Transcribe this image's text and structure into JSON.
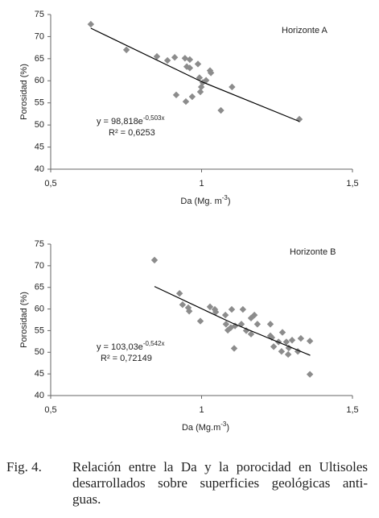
{
  "chart_data": [
    {
      "type": "scatter",
      "title": "Horizonte A",
      "x": [
        0.633,
        0.751,
        0.852,
        0.887,
        0.911,
        0.945,
        0.961,
        0.951,
        0.961,
        0.988,
        1.028,
        1.031,
        0.993,
        1.015,
        1.004,
        0.999,
        0.916,
        0.969,
        0.996,
        0.948,
        1.101,
        1.064,
        1.324
      ],
      "y": [
        72.8,
        67.0,
        65.5,
        64.6,
        65.3,
        65.1,
        64.8,
        63.2,
        62.9,
        63.8,
        62.3,
        61.8,
        60.7,
        60.1,
        59.6,
        58.6,
        56.8,
        56.4,
        57.5,
        55.3,
        58.6,
        53.3,
        51.3
      ],
      "color": "#8c8c8c",
      "trendline": {
        "x": [
          0.633,
          1.0,
          1.324
        ],
        "values": [
          71.9,
          59.8,
          50.8
        ],
        "color": "#000000"
      },
      "equation": {
        "text": "y = 98,818e",
        "sup": "-0,503x"
      },
      "r2": "R² = 0,6253",
      "xlim": [
        0.5,
        1.5
      ],
      "xticks": [
        {
          "value": 0.5,
          "label": "0,5"
        },
        1,
        {
          "value": 1.5,
          "label": "1,5"
        }
      ],
      "ylim": [
        40,
        75
      ],
      "yticks": [
        40,
        45,
        50,
        55,
        60,
        65,
        70,
        75
      ],
      "xlabel": {
        "text": "Da (Mg. m",
        "sup": "-3",
        "after": ")"
      },
      "ylabel": "Porosidad (%)"
    },
    {
      "type": "scatter",
      "title": "Horizonte B",
      "x": [
        0.844,
        0.927,
        0.937,
        0.956,
        0.959,
        0.996,
        1.028,
        1.044,
        1.047,
        1.079,
        1.1,
        1.081,
        1.097,
        1.087,
        1.111,
        1.108,
        1.132,
        1.137,
        1.148,
        1.164,
        1.175,
        1.185,
        1.164,
        1.228,
        1.233,
        1.228,
        1.239,
        1.255,
        1.268,
        1.265,
        1.281,
        1.287,
        1.289,
        1.3,
        1.319,
        1.329,
        1.359,
        1.359
      ],
      "y": [
        71.3,
        63.6,
        61.0,
        60.3,
        59.5,
        57.2,
        60.5,
        59.9,
        59.3,
        58.6,
        59.9,
        56.5,
        55.7,
        55.1,
        56.1,
        50.9,
        56.5,
        59.9,
        55.0,
        57.9,
        58.6,
        56.5,
        54.2,
        53.8,
        53.4,
        56.5,
        51.3,
        52.4,
        54.6,
        50.2,
        52.4,
        49.5,
        51.0,
        52.8,
        50.2,
        53.2,
        52.6,
        44.9
      ],
      "color": "#8c8c8c",
      "trendline": {
        "x": [
          0.844,
          1.1,
          1.36
        ],
        "values": [
          65.2,
          56.8,
          49.3
        ],
        "color": "#000000"
      },
      "equation": {
        "text": "y = 103,03e",
        "sup": "-0,542x"
      },
      "r2": "R² = 0,72149",
      "xlim": [
        0.5,
        1.5
      ],
      "xticks": [
        {
          "value": 0.5,
          "label": "0,5"
        },
        1,
        {
          "value": 1.5,
          "label": "1,5"
        }
      ],
      "ylim": [
        40,
        75
      ],
      "yticks": [
        40,
        45,
        50,
        55,
        60,
        65,
        70,
        75
      ],
      "xlabel": {
        "text": "Da (Mg.m",
        "sup": "-3",
        "after": ")"
      },
      "ylabel": "Porosidad (%)"
    }
  ],
  "caption": {
    "label": "Fig. 4.",
    "lines": [
      "Relación entre la Da y la porocidad en Ultisoles",
      "desarrollados sobre superficies geológicas anti-",
      "guas."
    ]
  }
}
